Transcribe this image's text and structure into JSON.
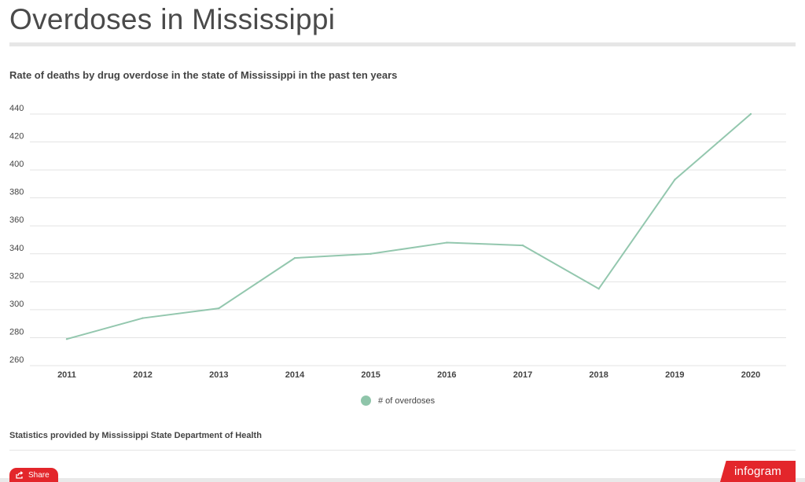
{
  "page": {
    "title": "Overdoses in Mississippi",
    "subtitle": "Rate of deaths by drug overdose in the state of Mississippi in the past ten years",
    "source": "Statistics provided by Mississippi State Department of Health"
  },
  "share": {
    "label": "Share",
    "icon": "share-icon"
  },
  "branding": {
    "label": "infogram"
  },
  "colors": {
    "line": "#93c7ae",
    "legend": "#8fc5aa",
    "grid": "#e3e3e3",
    "accent": "#e3262b"
  },
  "chart_data": {
    "type": "line",
    "title": "",
    "xlabel": "",
    "ylabel": "",
    "categories": [
      "2011",
      "2012",
      "2013",
      "2014",
      "2015",
      "2016",
      "2017",
      "2018",
      "2019",
      "2020"
    ],
    "series": [
      {
        "name": "# of overdoses",
        "values": [
          279,
          294,
          301,
          337,
          340,
          348,
          346,
          315,
          393,
          440
        ]
      }
    ],
    "yticks": [
      260,
      280,
      300,
      320,
      340,
      360,
      380,
      400,
      420,
      440
    ],
    "ylim": [
      260,
      440
    ],
    "grid": true,
    "legend_position": "bottom"
  }
}
